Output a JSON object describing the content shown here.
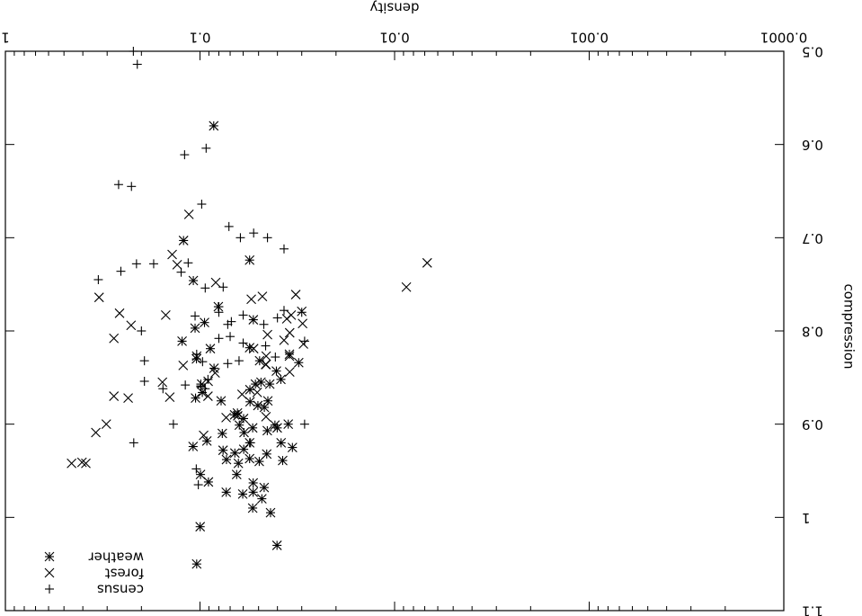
{
  "chart_data": {
    "type": "scatter",
    "title": "",
    "xlabel": "density",
    "ylabel": "compression",
    "x_scale": "log",
    "x_axis_reversed": true,
    "y_axis_reversed": true,
    "image_rotated_180": true,
    "xlim": [
      1,
      0.0001
    ],
    "ylim": [
      1.1,
      0.5
    ],
    "x_ticks": [
      {
        "value": 1,
        "label": "1"
      },
      {
        "value": 0.1,
        "label": "0.1"
      },
      {
        "value": 0.01,
        "label": "0.01"
      },
      {
        "value": 0.001,
        "label": "0.001"
      },
      {
        "value": 0.0001,
        "label": "0.0001"
      }
    ],
    "y_ticks": [
      {
        "value": 1.1,
        "label": "1.1"
      },
      {
        "value": 1.0,
        "label": "1"
      },
      {
        "value": 0.9,
        "label": "0.9"
      },
      {
        "value": 0.8,
        "label": "0.8"
      },
      {
        "value": 0.7,
        "label": "0.7"
      },
      {
        "value": 0.6,
        "label": "0.6"
      },
      {
        "value": 0.5,
        "label": "0.5"
      }
    ],
    "grid": false,
    "legend_position": "bottom-left",
    "series": [
      {
        "name": "census",
        "marker": "plus",
        "points": [
          [
            0.22,
            0.5
          ],
          [
            0.21,
            0.514
          ],
          [
            0.262,
            0.643
          ],
          [
            0.225,
            0.645
          ],
          [
            0.12,
            0.611
          ],
          [
            0.093,
            0.604
          ],
          [
            0.098,
            0.664
          ],
          [
            0.071,
            0.688
          ],
          [
            0.062,
            0.7
          ],
          [
            0.053,
            0.695
          ],
          [
            0.045,
            0.7
          ],
          [
            0.037,
            0.712
          ],
          [
            0.115,
            0.727
          ],
          [
            0.173,
            0.728
          ],
          [
            0.212,
            0.728
          ],
          [
            0.255,
            0.736
          ],
          [
            0.333,
            0.745
          ],
          [
            0.125,
            0.737
          ],
          [
            0.094,
            0.754
          ],
          [
            0.076,
            0.753
          ],
          [
            0.08,
            0.774
          ],
          [
            0.037,
            0.778
          ],
          [
            0.08,
            0.78
          ],
          [
            0.06,
            0.783
          ],
          [
            0.106,
            0.784
          ],
          [
            0.072,
            0.793
          ],
          [
            0.04,
            0.786
          ],
          [
            0.03,
            0.78
          ],
          [
            0.069,
            0.79
          ],
          [
            0.047,
            0.793
          ],
          [
            0.2,
            0.8
          ],
          [
            0.193,
            0.832
          ],
          [
            0.193,
            0.854
          ],
          [
            0.08,
            0.808
          ],
          [
            0.06,
            0.813
          ],
          [
            0.07,
            0.806
          ],
          [
            0.041,
            0.828
          ],
          [
            0.046,
            0.816
          ],
          [
            0.029,
            0.811
          ],
          [
            0.104,
            0.825
          ],
          [
            0.097,
            0.833
          ],
          [
            0.072,
            0.835
          ],
          [
            0.119,
            0.858
          ],
          [
            0.155,
            0.862
          ],
          [
            0.099,
            0.859
          ],
          [
            0.091,
            0.852
          ],
          [
            0.029,
            0.9
          ],
          [
            0.137,
            0.9
          ],
          [
            0.219,
            0.92
          ],
          [
            0.055,
            0.92
          ],
          [
            0.063,
            0.832
          ],
          [
            0.094,
            0.862
          ],
          [
            0.1045,
            0.948
          ],
          [
            0.099,
            0.86
          ],
          [
            0.099,
            0.857
          ],
          [
            0.102,
            0.965
          ]
        ]
      },
      {
        "name": "forest",
        "marker": "x",
        "points": [
          [
            0.0068,
            0.727
          ],
          [
            0.0087,
            0.753
          ],
          [
            0.114,
            0.675
          ],
          [
            0.139,
            0.718
          ],
          [
            0.259,
            0.781
          ],
          [
            0.226,
            0.794
          ],
          [
            0.234,
            0.872
          ],
          [
            0.33,
            0.764
          ],
          [
            0.15,
            0.783
          ],
          [
            0.034,
            0.783
          ],
          [
            0.03,
            0.779
          ],
          [
            0.0297,
            0.792
          ],
          [
            0.0346,
            0.802
          ],
          [
            0.0294,
            0.814
          ],
          [
            0.0347,
            0.827
          ],
          [
            0.045,
            0.804
          ],
          [
            0.037,
            0.81
          ],
          [
            0.053,
            0.819
          ],
          [
            0.0457,
            0.827
          ],
          [
            0.0608,
            0.868
          ],
          [
            0.091,
            0.87
          ],
          [
            0.0836,
            0.845
          ],
          [
            0.0908,
            0.854
          ],
          [
            0.098,
            0.857
          ],
          [
            0.156,
            0.855
          ],
          [
            0.143,
            0.871
          ],
          [
            0.277,
            0.87
          ],
          [
            0.277,
            0.808
          ],
          [
            0.0508,
            0.866
          ],
          [
            0.0458,
            0.892
          ],
          [
            0.064,
            0.891
          ],
          [
            0.0734,
            0.893
          ],
          [
            0.303,
            0.9
          ],
          [
            0.343,
            0.909
          ],
          [
            0.386,
            0.942
          ],
          [
            0.404,
            0.941
          ],
          [
            0.457,
            0.942
          ],
          [
            0.122,
            0.837
          ],
          [
            0.104,
            0.827
          ],
          [
            0.0958,
            0.912
          ],
          [
            0.0458,
            0.836
          ],
          [
            0.046,
            0.836
          ],
          [
            0.0346,
            0.844
          ],
          [
            0.131,
            0.729
          ],
          [
            0.083,
            0.748
          ],
          [
            0.0545,
            0.766
          ],
          [
            0.0322,
            0.761
          ],
          [
            0.0358,
            0.787
          ],
          [
            0.0478,
            0.763
          ]
        ]
      },
      {
        "name": "weather",
        "marker": "asterisk",
        "points": [
          [
            0.085,
            0.58
          ],
          [
            0.1215,
            0.703
          ],
          [
            0.0556,
            0.724
          ],
          [
            0.1082,
            0.746
          ],
          [
            0.0532,
            0.788
          ],
          [
            0.0347,
            0.825
          ],
          [
            0.0311,
            0.834
          ],
          [
            0.0405,
            0.843
          ],
          [
            0.0486,
            0.855
          ],
          [
            0.0438,
            0.857
          ],
          [
            0.0384,
            0.852
          ],
          [
            0.0554,
            0.863
          ],
          [
            0.0519,
            0.857
          ],
          [
            0.0494,
            0.832
          ],
          [
            0.0556,
            0.818
          ],
          [
            0.0448,
            0.875
          ],
          [
            0.0553,
            0.876
          ],
          [
            0.0401,
            0.904
          ],
          [
            0.0352,
            0.9
          ],
          [
            0.0412,
            0.901
          ],
          [
            0.0467,
            0.882
          ],
          [
            0.0504,
            0.88
          ],
          [
            0.0451,
            0.907
          ],
          [
            0.0536,
            0.904
          ],
          [
            0.0383,
            0.92
          ],
          [
            0.0335,
            0.925
          ],
          [
            0.0376,
            0.939
          ],
          [
            0.0454,
            0.932
          ],
          [
            0.0496,
            0.94
          ],
          [
            0.0556,
            0.937
          ],
          [
            0.0596,
            0.927
          ],
          [
            0.0662,
            0.931
          ],
          [
            0.0635,
            0.942
          ],
          [
            0.0648,
            0.954
          ],
          [
            0.0603,
            0.975
          ],
          [
            0.0533,
            0.973
          ],
          [
            0.0481,
            0.98
          ],
          [
            0.0468,
            0.968
          ],
          [
            0.0533,
            0.963
          ],
          [
            0.0556,
            0.92
          ],
          [
            0.0594,
            0.909
          ],
          [
            0.0628,
            0.901
          ],
          [
            0.0597,
            0.894
          ],
          [
            0.0642,
            0.888
          ],
          [
            0.0664,
            0.89
          ],
          [
            0.0761,
            0.928
          ],
          [
            0.0779,
            0.875
          ],
          [
            0.0885,
            0.819
          ],
          [
            0.0973,
            0.866
          ],
          [
            0.1043,
            0.83
          ],
          [
            0.0948,
            0.791
          ],
          [
            0.0805,
            0.774
          ],
          [
            0.106,
            0.797
          ],
          [
            0.0768,
            0.91
          ],
          [
            0.1054,
            0.872
          ],
          [
            0.0922,
            0.918
          ],
          [
            0.0905,
            0.962
          ],
          [
            0.0847,
            0.84
          ],
          [
            0.0994,
            0.954
          ],
          [
            0.1085,
            0.924
          ],
          [
            0.1236,
            0.811
          ],
          [
            0.0731,
            0.938
          ],
          [
            0.0733,
            0.973
          ],
          [
            0.0998,
            1.01
          ],
          [
            0.0536,
            0.99
          ],
          [
            0.0434,
            0.995
          ],
          [
            0.0402,
            1.03
          ],
          [
            0.104,
            1.05
          ]
        ]
      }
    ],
    "legend": [
      {
        "series": "census",
        "label": "census",
        "marker": "plus"
      },
      {
        "series": "forest",
        "label": "forest",
        "marker": "x"
      },
      {
        "series": "weather",
        "label": "weather",
        "marker": "asterisk"
      }
    ]
  }
}
